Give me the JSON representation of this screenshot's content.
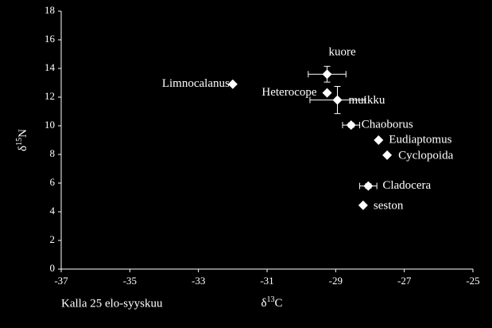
{
  "chart_data": {
    "type": "scatter",
    "annotation": "Kalla 25 elo-syyskuu",
    "x_label": [
      "δ",
      "13",
      "C"
    ],
    "y_label": [
      "δ",
      "15",
      "N"
    ],
    "xlim": [
      -37,
      -25
    ],
    "xticks": [
      -37,
      -35,
      -33,
      -31,
      -29,
      -27,
      -25
    ],
    "ylim": [
      0,
      18
    ],
    "yticks": [
      0,
      2,
      4,
      6,
      8,
      10,
      12,
      14,
      16,
      18
    ],
    "series": [
      {
        "color": "#ffffff",
        "labels": [
          "Limnocalanus",
          "kuore",
          "Heterocope",
          "muikku",
          "Chaoborus",
          "Eudiaptomus",
          "Cyclopoida",
          "Cladocera",
          "seston"
        ],
        "x": [
          -32.0,
          -29.25,
          -29.25,
          -28.95,
          -28.55,
          -27.75,
          -27.5,
          -28.05,
          -28.2
        ],
        "values": [
          12.9,
          13.6,
          12.3,
          11.8,
          10.05,
          9.0,
          7.95,
          5.8,
          4.45
        ],
        "xerr": [
          null,
          0.55,
          null,
          0.8,
          0.25,
          null,
          null,
          0.25,
          null
        ],
        "yerr": [
          null,
          0.55,
          null,
          0.95,
          0.15,
          null,
          null,
          0.15,
          null
        ]
      }
    ]
  }
}
